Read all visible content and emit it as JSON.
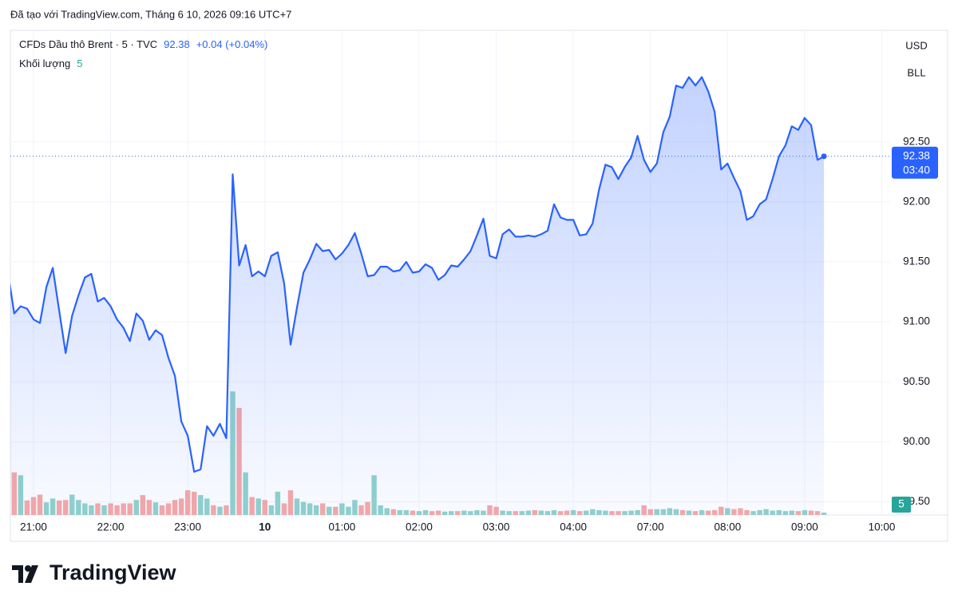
{
  "header": {
    "created": "Đã tạo với TradingView.com, Tháng 6 10, 2026 09:16 UTC+7",
    "symbol": "CFDs Dầu thô Brent · 5 · TVC",
    "price": "92.38",
    "change": "+0.04 (+0.04%)",
    "volume_label": "Khối lượng",
    "volume_value": "5"
  },
  "chart_data": {
    "type": "line",
    "color": "#2962ff",
    "fill": "area",
    "grid": true,
    "values": [
      91.42,
      91.07,
      91.13,
      91.11,
      91.02,
      90.99,
      91.29,
      91.45,
      91.09,
      90.74,
      91.05,
      91.22,
      91.37,
      91.4,
      91.17,
      91.2,
      91.13,
      91.02,
      90.95,
      90.84,
      91.07,
      91.01,
      90.85,
      90.93,
      90.89,
      90.7,
      90.55,
      90.17,
      90.05,
      89.75,
      89.77,
      90.13,
      90.05,
      90.15,
      90.03,
      92.23,
      91.47,
      91.64,
      91.38,
      91.42,
      91.38,
      91.55,
      91.58,
      91.32,
      90.81,
      91.12,
      91.41,
      91.52,
      91.65,
      91.59,
      91.6,
      91.52,
      91.57,
      91.64,
      91.74,
      91.57,
      91.38,
      91.39,
      91.46,
      91.46,
      91.42,
      91.43,
      91.5,
      91.41,
      91.42,
      91.48,
      91.45,
      91.35,
      91.39,
      91.47,
      91.46,
      91.52,
      91.59,
      91.72,
      91.86,
      91.55,
      91.53,
      91.73,
      91.77,
      91.71,
      91.71,
      91.72,
      91.71,
      91.73,
      91.76,
      91.98,
      91.87,
      91.85,
      91.85,
      91.72,
      91.73,
      91.82,
      92.1,
      92.31,
      92.29,
      92.19,
      92.29,
      92.37,
      92.55,
      92.35,
      92.25,
      92.32,
      92.58,
      92.71,
      92.97,
      92.95,
      93.04,
      92.97,
      93.04,
      92.92,
      92.75,
      92.27,
      92.32,
      92.2,
      92.09,
      91.85,
      91.88,
      91.98,
      92.02,
      92.19,
      92.38,
      92.47,
      92.63,
      92.6,
      92.7,
      92.64,
      92.35,
      92.38
    ],
    "ylim": [
      89.39,
      93.43
    ],
    "yticks": [
      {
        "value": 89.5,
        "label": "89.50"
      },
      {
        "value": 90,
        "label": "90.00"
      },
      {
        "value": 90.5,
        "label": "90.50"
      },
      {
        "value": 91,
        "label": "91.00"
      },
      {
        "value": 91.5,
        "label": "91.50"
      },
      {
        "value": 92,
        "label": "92.00"
      },
      {
        "value": 92.5,
        "label": "92.50"
      }
    ],
    "xlim": [
      0.4,
      137.3
    ],
    "xticks": [
      {
        "value": 4,
        "label": "21:00"
      },
      {
        "value": 16,
        "label": "22:00"
      },
      {
        "value": 28,
        "label": "23:00"
      },
      {
        "value": 40,
        "label": "10"
      },
      {
        "value": 52,
        "label": "01:00"
      },
      {
        "value": 64,
        "label": "02:00"
      },
      {
        "value": 76,
        "label": "03:00"
      },
      {
        "value": 88,
        "label": "04:00"
      },
      {
        "value": 100,
        "label": "07:00"
      },
      {
        "value": 112,
        "label": "08:00"
      },
      {
        "value": 124,
        "label": "09:00"
      },
      {
        "value": 136,
        "label": "10:00"
      }
    ],
    "last_price": {
      "value": 92.38,
      "label": "92.38"
    },
    "countdown": "03:40",
    "currency": "USD",
    "unit": "BLL",
    "volume": {
      "values": [
        80,
        88,
        82,
        30,
        37,
        42,
        26,
        34,
        30,
        31,
        42,
        31,
        24,
        20,
        24,
        20,
        24,
        20,
        24,
        24,
        31,
        41,
        31,
        26,
        20,
        24,
        31,
        34,
        51,
        48,
        41,
        34,
        20,
        17,
        20,
        255,
        221,
        88,
        37,
        34,
        31,
        20,
        48,
        24,
        51,
        34,
        27,
        24,
        20,
        24,
        17,
        17,
        24,
        17,
        31,
        20,
        27,
        82,
        20,
        14,
        12,
        10,
        10,
        9,
        8,
        10,
        8,
        9,
        7,
        8,
        8,
        9,
        8,
        10,
        9,
        20,
        17,
        9,
        8,
        8,
        8,
        9,
        10,
        9,
        8,
        10,
        8,
        9,
        10,
        8,
        9,
        12,
        10,
        9,
        8,
        8,
        8,
        9,
        10,
        20,
        12,
        12,
        12,
        14,
        12,
        10,
        9,
        8,
        10,
        9,
        10,
        17,
        14,
        12,
        14,
        10,
        8,
        10,
        12,
        9,
        10,
        8,
        9,
        8,
        10,
        9,
        8,
        5
      ],
      "ylim": [
        0,
        300
      ],
      "up_color": "#92d2cc",
      "down_color": "#f7a9a7",
      "badge_color": "#26a69a"
    }
  },
  "footer": {
    "brand": "TradingView"
  }
}
